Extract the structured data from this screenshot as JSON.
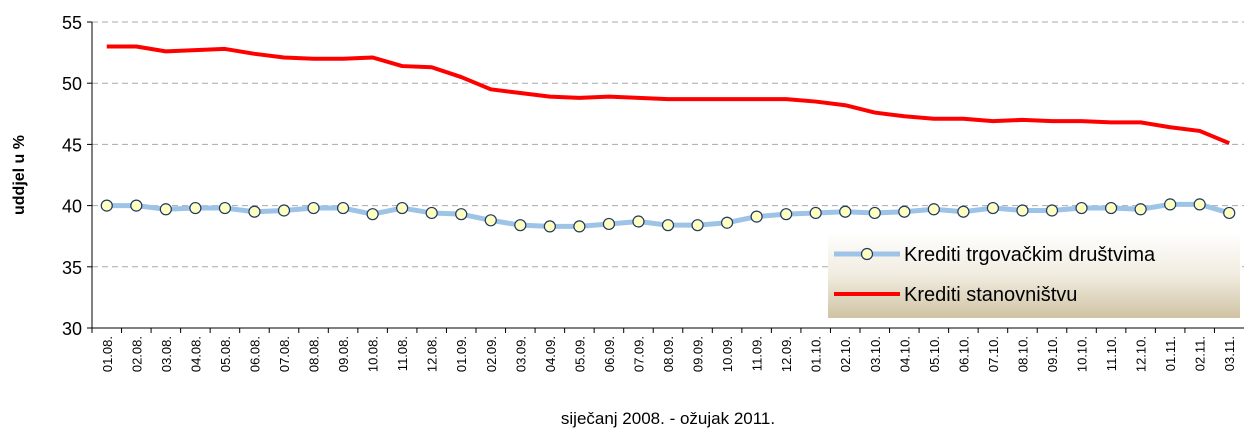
{
  "chart_data": {
    "type": "line",
    "x_label": "siječanj 2008. - ožujak 2011.",
    "y_label": "uddjel u %",
    "categories": [
      "01.08.",
      "02.08.",
      "03.08.",
      "04.08.",
      "05.08.",
      "06.08.",
      "07.08.",
      "08.08.",
      "09.08.",
      "10.08.",
      "11.08.",
      "12.08.",
      "01.09.",
      "02.09.",
      "03.09.",
      "04.09.",
      "05.09.",
      "06.09.",
      "07.09.",
      "08.09.",
      "09.09.",
      "10.09.",
      "11.09.",
      "12.09.",
      "01.10.",
      "02.10.",
      "03.10.",
      "04.10.",
      "05.10.",
      "06.10.",
      "07.10.",
      "08.10.",
      "09.10.",
      "10.10.",
      "11.10.",
      "12.10.",
      "01.11.",
      "02.11.",
      "03.11."
    ],
    "series": [
      {
        "name": "Krediti trgovačkim društvima",
        "color": "#9dc3e6",
        "marker": "circle",
        "values": [
          40.0,
          40.0,
          39.7,
          39.8,
          39.8,
          39.5,
          39.6,
          39.8,
          39.8,
          39.3,
          39.8,
          39.4,
          39.3,
          38.8,
          38.4,
          38.3,
          38.3,
          38.5,
          38.7,
          38.4,
          38.4,
          38.6,
          39.1,
          39.3,
          39.4,
          39.5,
          39.4,
          39.5,
          39.7,
          39.5,
          39.8,
          39.6,
          39.6,
          39.8,
          39.8,
          39.7,
          40.1,
          40.1,
          39.4
        ]
      },
      {
        "name": "Krediti stanovništvu",
        "color": "#ff0000",
        "values": [
          53.0,
          53.0,
          52.6,
          52.7,
          52.8,
          52.4,
          52.1,
          52.0,
          52.0,
          52.1,
          51.4,
          51.3,
          50.5,
          49.5,
          49.2,
          48.9,
          48.8,
          48.9,
          48.8,
          48.7,
          48.7,
          48.7,
          48.7,
          48.7,
          48.5,
          48.2,
          47.6,
          47.3,
          47.1,
          47.1,
          46.9,
          47.0,
          46.9,
          46.9,
          46.8,
          46.8,
          46.4,
          46.1,
          45.1
        ]
      }
    ],
    "ylim": [
      30,
      55
    ],
    "yticks": [
      30,
      35,
      40,
      45,
      50,
      55
    ],
    "grid": true,
    "legend": "lower right"
  }
}
